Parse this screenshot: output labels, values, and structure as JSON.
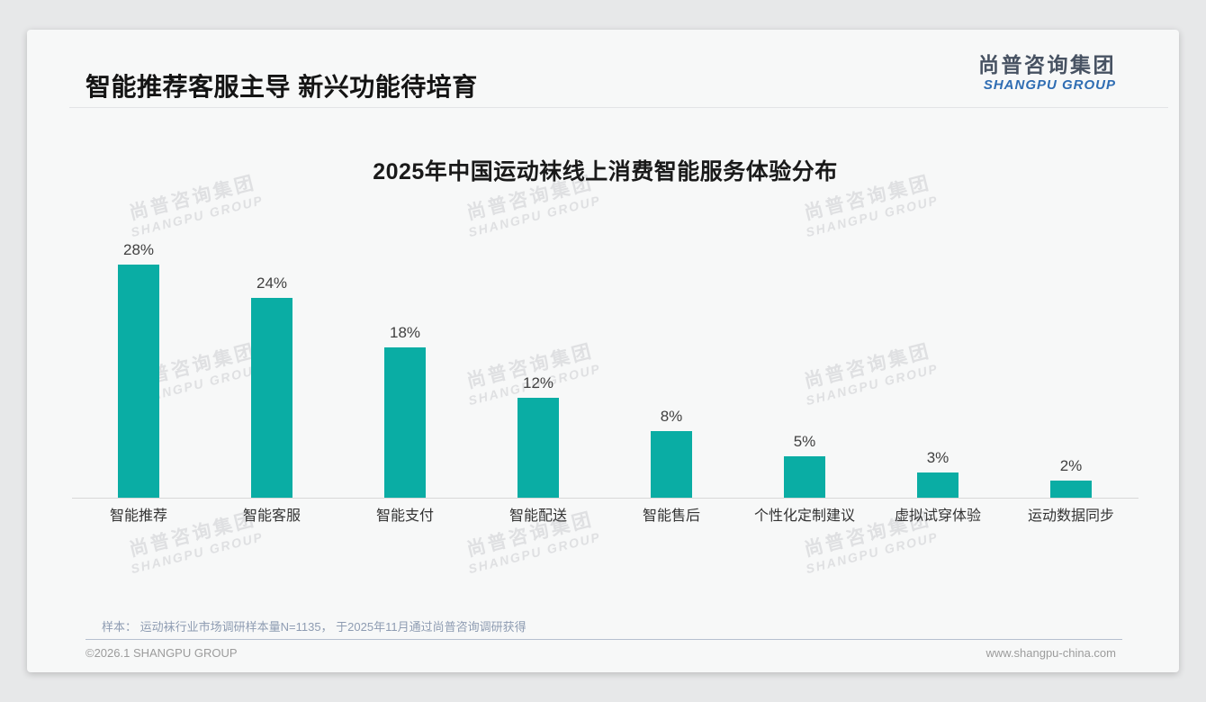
{
  "page": {
    "title": "智能推荐客服主导 新兴功能待培育",
    "logo": {
      "cn": "尚普咨询集团",
      "en": "SHANGPU GROUP"
    },
    "watermark": {
      "cn": "尚普咨询集团",
      "en": "SHANGPU GROUP"
    },
    "footnote": "样本： 运动袜行业市场调研样本量N=1135， 于2025年11月通过尚普咨询调研获得",
    "footer_left": "©2026.1 SHANGPU GROUP",
    "footer_right": "www.shangpu-china.com",
    "colors": {
      "accent_teal": "#0aada4",
      "logo_blue": "#2f6db3"
    }
  },
  "chart_data": {
    "type": "bar",
    "title": "2025年中国运动袜线上消费智能服务体验分布",
    "categories": [
      "智能推荐",
      "智能客服",
      "智能支付",
      "智能配送",
      "智能售后",
      "个性化定制建议",
      "虚拟试穿体验",
      "运动数据同步"
    ],
    "values": [
      28,
      24,
      18,
      12,
      8,
      5,
      3,
      2
    ],
    "value_labels": [
      "28%",
      "24%",
      "18%",
      "12%",
      "8%",
      "5%",
      "3%",
      "2%"
    ],
    "unit": "%",
    "xlabel": "",
    "ylabel": "",
    "ylim": [
      0,
      30
    ],
    "grid": false,
    "legend": false,
    "bar_color": "#0aada4"
  }
}
